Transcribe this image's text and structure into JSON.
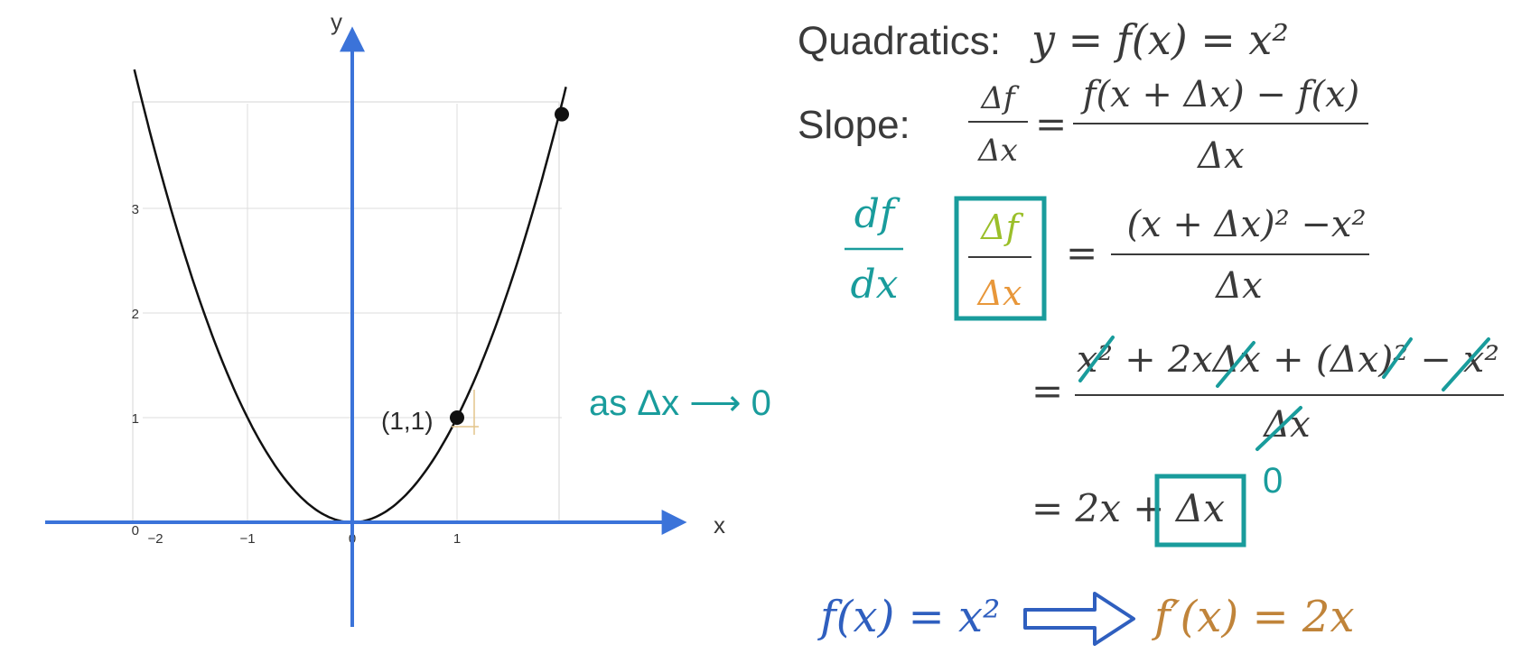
{
  "colors": {
    "axis": "#3b73d9",
    "curve": "#111111",
    "teal": "#199c9c",
    "green": "#9bbf2a",
    "orange": "#e8973a",
    "blue_text": "#2f5fbf",
    "brown": "#c0843a",
    "text": "#3a3a3a",
    "grid": "#dddddd"
  },
  "chart_data": {
    "type": "line",
    "function": "y = x^2",
    "x": [
      -2.0,
      -1.5,
      -1.0,
      -0.5,
      0.0,
      0.5,
      1.0,
      1.5,
      2.0
    ],
    "y": [
      4.0,
      2.25,
      1.0,
      0.25,
      0.0,
      0.25,
      1.0,
      2.25,
      4.0
    ],
    "xlim": [
      -2,
      2
    ],
    "ylim": [
      0,
      4
    ],
    "x_ticks": [
      "−2",
      "−1",
      "0",
      "1"
    ],
    "y_ticks": [
      "0",
      "1",
      "2",
      "3"
    ],
    "xlabel": "x",
    "ylabel": "y",
    "grid": true,
    "points": [
      {
        "x": 1,
        "y": 1,
        "label": "(1,1)"
      },
      {
        "x": 2,
        "y": 3.9,
        "label": ""
      }
    ]
  },
  "text": {
    "quadratics_label": "Quadratics:",
    "quadratics_eq": "y = f(x) = x²",
    "slope_label": "Slope:",
    "delta_f": "Δf",
    "delta_x": "Δx",
    "equals": "=",
    "slope_numerator": "f(x + Δx) − f(x)",
    "df": "df",
    "dx": "dx",
    "expand_numerator": "(x + Δx)²  −x²",
    "expand2_numerator": "x² + 2xΔx + (Δx)² − x²",
    "result_lhs": "= 2x +",
    "result_box": "Δx",
    "zero_label": "0",
    "limit_text": "as Δx ⟶ 0",
    "conclusion_left": "f(x) = x²",
    "conclusion_right": "f′(x) = 2x"
  }
}
